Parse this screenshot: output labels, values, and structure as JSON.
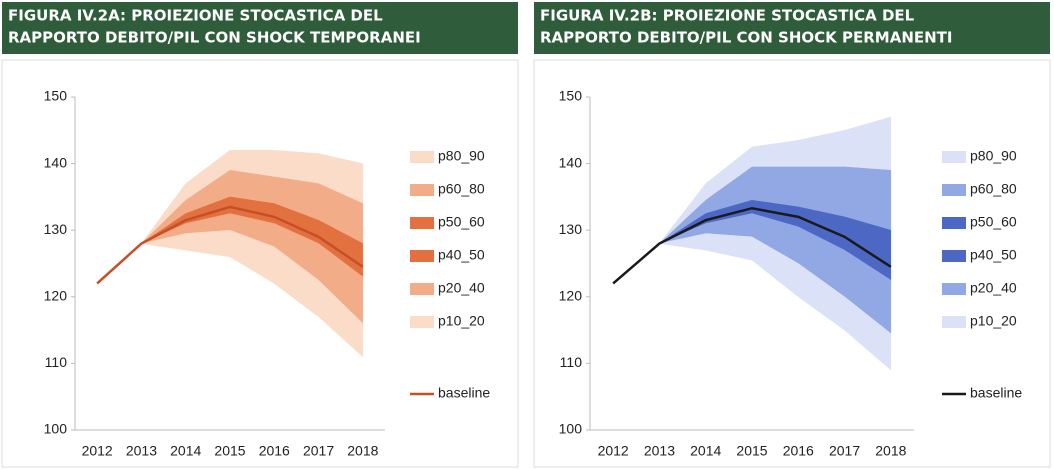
{
  "chart_data": [
    {
      "type": "fan",
      "title": [
        "FIGURA IV.2A: PROIEZIONE STOCASTICA DEL",
        "RAPPORTO DEBITO/PIL CON SHOCK TEMPORANEI"
      ],
      "categories": [
        "2012",
        "2013",
        "2014",
        "2015",
        "2016",
        "2017",
        "2018"
      ],
      "ylim": [
        100,
        150
      ],
      "yticks": [
        100,
        110,
        120,
        130,
        140,
        150
      ],
      "series": [
        {
          "name": "p80_90",
          "color": "#fadcc9",
          "low": [
            null,
            128,
            134.5,
            139,
            138,
            137,
            134
          ],
          "high": [
            null,
            128,
            137,
            142,
            142,
            141.5,
            140
          ]
        },
        {
          "name": "p60_80",
          "color": "#f2ad88",
          "low": [
            null,
            128,
            132.5,
            135,
            134,
            131.5,
            128
          ],
          "high": [
            null,
            128,
            134.5,
            139,
            138,
            137,
            134
          ]
        },
        {
          "name": "p50_60",
          "color": "#e3713f",
          "low": [
            null,
            128,
            131.8,
            134,
            133,
            130,
            126
          ],
          "high": [
            null,
            128,
            132.5,
            135,
            134,
            131.5,
            128
          ]
        },
        {
          "name": "p40_50",
          "color": "#e3713f",
          "low": [
            null,
            128,
            131,
            132.5,
            131,
            128,
            123
          ],
          "high": [
            null,
            128,
            131.8,
            134,
            133,
            130,
            126
          ]
        },
        {
          "name": "p20_40",
          "color": "#f2ad88",
          "low": [
            null,
            128,
            129.5,
            130,
            127.5,
            122.5,
            116
          ],
          "high": [
            null,
            128,
            131,
            132.5,
            131,
            128,
            123
          ]
        },
        {
          "name": "p10_20",
          "color": "#fadcc9",
          "low": [
            null,
            128,
            127,
            126,
            122,
            117,
            111
          ],
          "high": [
            null,
            128,
            129.5,
            130,
            127.5,
            122.5,
            116
          ]
        }
      ],
      "baseline": {
        "name": "baseline",
        "color": "#c64f27",
        "values": [
          122,
          128,
          131.5,
          133.5,
          132,
          129,
          124.5
        ]
      }
    },
    {
      "type": "fan",
      "title": [
        "FIGURA IV.2B: PROIEZIONE STOCASTICA DEL",
        "RAPPORTO DEBITO/PIL CON SHOCK PERMANENTI"
      ],
      "categories": [
        "2012",
        "2013",
        "2014",
        "2015",
        "2016",
        "2017",
        "2018"
      ],
      "ylim": [
        100,
        150
      ],
      "yticks": [
        100,
        110,
        120,
        130,
        140,
        150
      ],
      "series": [
        {
          "name": "p80_90",
          "color": "#dbe2f7",
          "low": [
            null,
            128,
            134.5,
            139.5,
            139.5,
            139.5,
            139
          ],
          "high": [
            null,
            128,
            137,
            142.5,
            143.5,
            145,
            147
          ]
        },
        {
          "name": "p60_80",
          "color": "#92a8e4",
          "low": [
            null,
            128,
            132.5,
            134.5,
            133.5,
            132,
            130
          ],
          "high": [
            null,
            128,
            134.5,
            139.5,
            139.5,
            139.5,
            139
          ]
        },
        {
          "name": "p50_60",
          "color": "#4c68c4",
          "low": [
            null,
            128,
            132,
            133.8,
            132.5,
            130,
            127
          ],
          "high": [
            null,
            128,
            132.5,
            134.5,
            133.5,
            132,
            130
          ]
        },
        {
          "name": "p40_50",
          "color": "#4c68c4",
          "low": [
            null,
            128,
            131,
            132.5,
            130.5,
            127,
            122.5
          ],
          "high": [
            null,
            128,
            132,
            133.8,
            132.5,
            130,
            127
          ]
        },
        {
          "name": "p20_40",
          "color": "#92a8e4",
          "low": [
            null,
            128,
            129.5,
            129,
            125,
            120,
            114.5
          ],
          "high": [
            null,
            128,
            131,
            132.5,
            130.5,
            127,
            122.5
          ]
        },
        {
          "name": "p10_20",
          "color": "#dbe2f7",
          "low": [
            null,
            128,
            127,
            125.5,
            120,
            115,
            109
          ],
          "high": [
            null,
            128,
            129.5,
            129,
            125,
            120,
            114.5
          ]
        }
      ],
      "baseline": {
        "name": "baseline",
        "color": "#1a1a1a",
        "values": [
          122,
          128,
          131.5,
          133.3,
          132,
          129,
          124.5
        ]
      }
    }
  ]
}
